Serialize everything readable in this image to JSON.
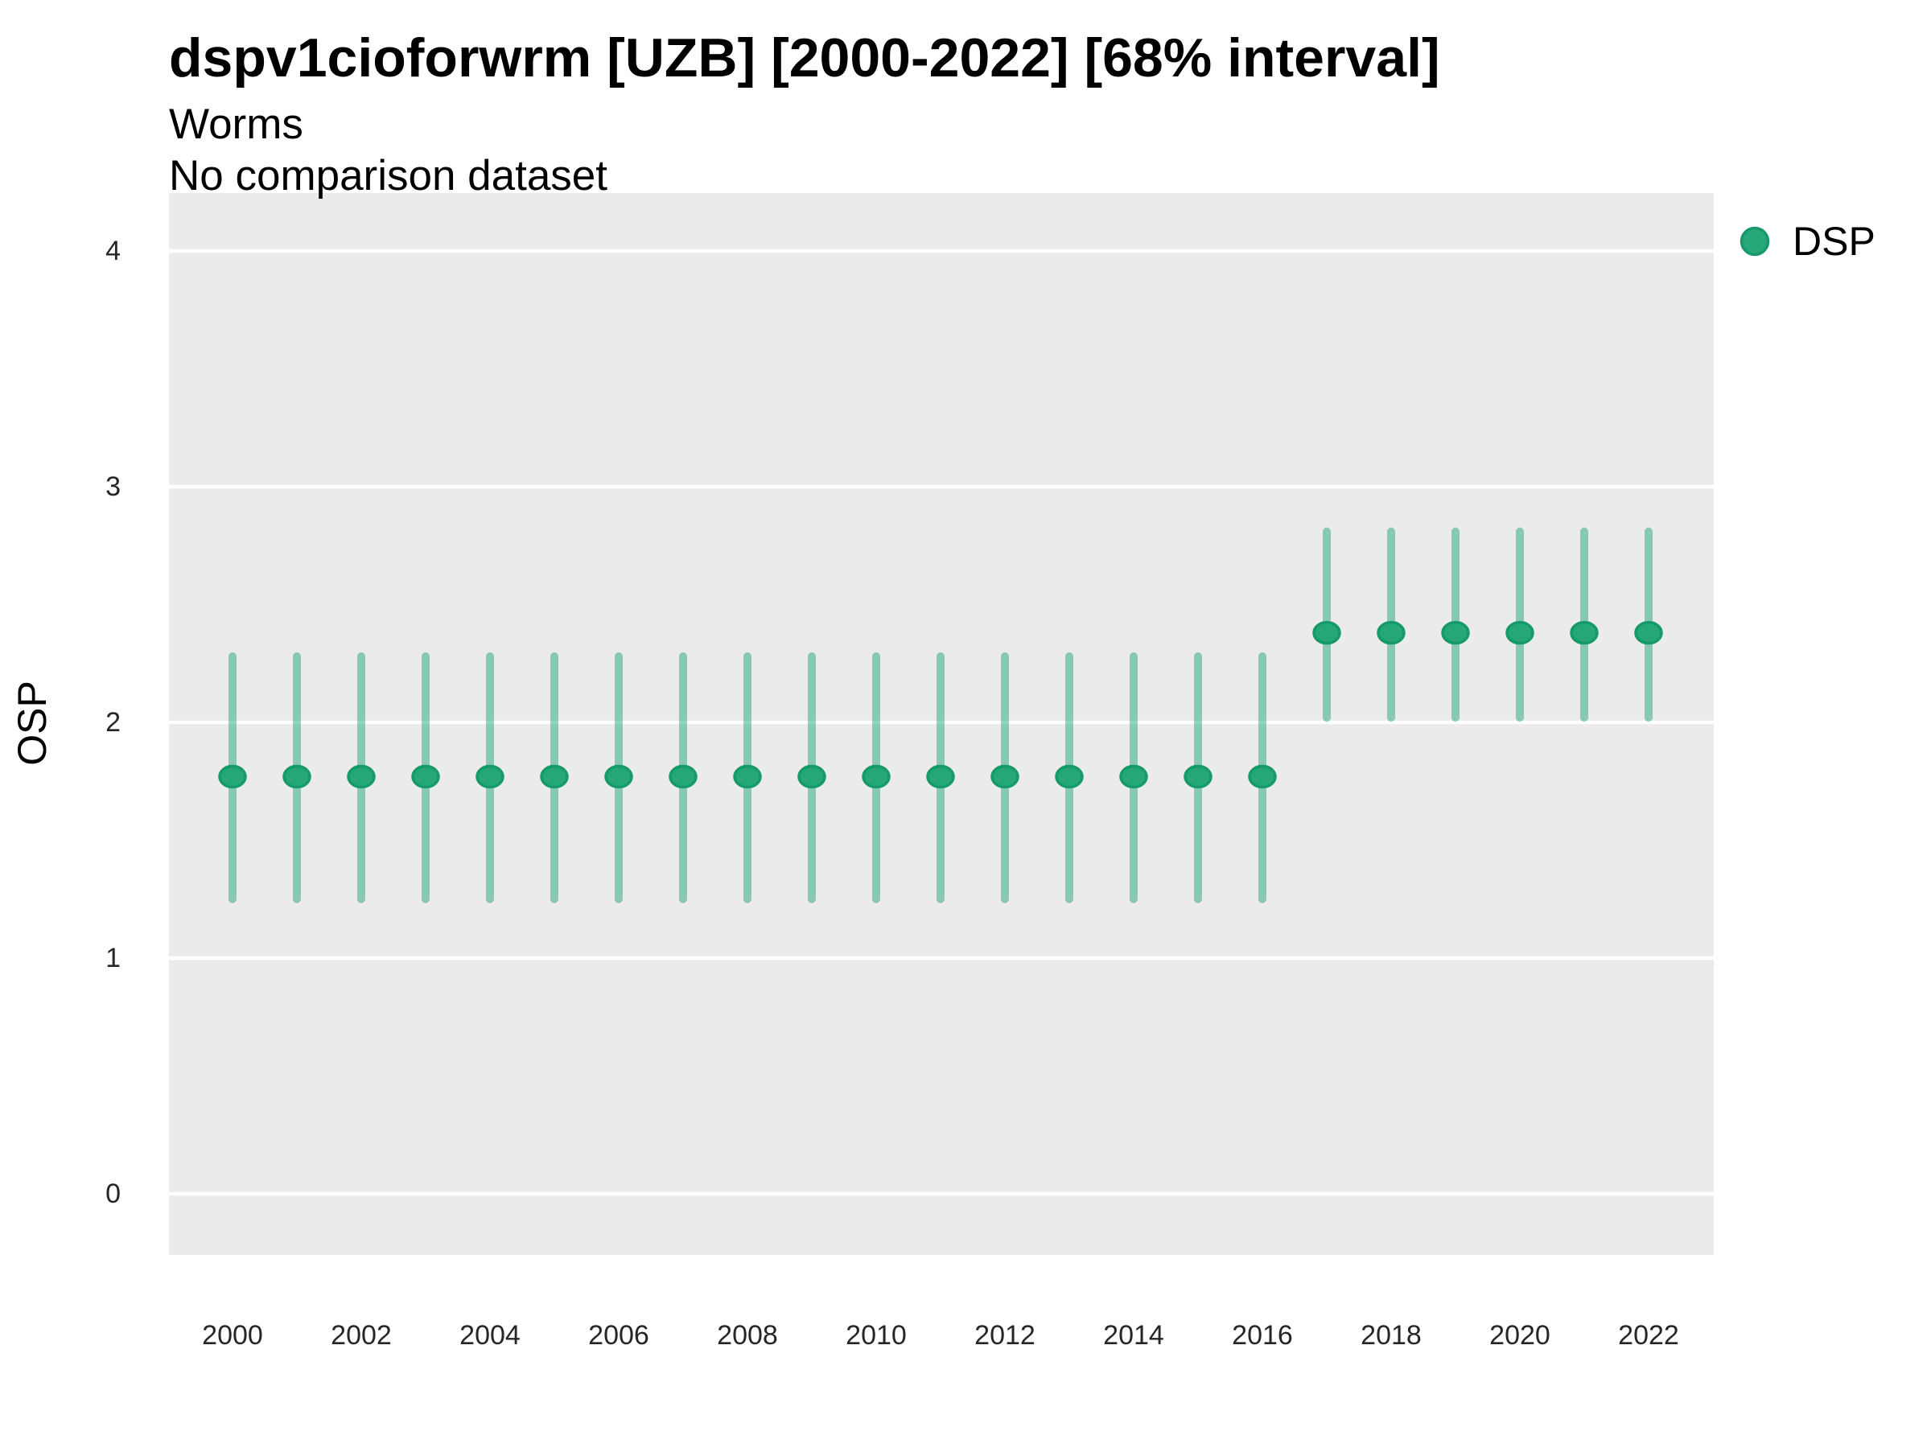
{
  "chart_data": {
    "type": "pointrange",
    "title": "dspv1cioforwrm [UZB] [2000-2022] [68% interval]",
    "subtitle": "Worms",
    "note": "No comparison dataset",
    "ylabel": "OSP",
    "xlabel": "",
    "interval_label": "68% interval",
    "ylim": [
      -0.26,
      4.25
    ],
    "yticks": [
      0,
      1,
      2,
      3,
      4
    ],
    "xticks": [
      2000,
      2002,
      2004,
      2006,
      2008,
      2010,
      2012,
      2014,
      2016,
      2018,
      2020,
      2022
    ],
    "grid": "major-horizontal-only",
    "legend": {
      "position": "right",
      "entries": [
        {
          "label": "DSP",
          "color": "#26a778"
        }
      ]
    },
    "series": [
      {
        "name": "DSP",
        "points": [
          {
            "year": 2000,
            "y": 1.77,
            "ymin": 1.25,
            "ymax": 2.28
          },
          {
            "year": 2001,
            "y": 1.77,
            "ymin": 1.25,
            "ymax": 2.28
          },
          {
            "year": 2002,
            "y": 1.77,
            "ymin": 1.25,
            "ymax": 2.28
          },
          {
            "year": 2003,
            "y": 1.77,
            "ymin": 1.25,
            "ymax": 2.28
          },
          {
            "year": 2004,
            "y": 1.77,
            "ymin": 1.25,
            "ymax": 2.28
          },
          {
            "year": 2005,
            "y": 1.77,
            "ymin": 1.25,
            "ymax": 2.28
          },
          {
            "year": 2006,
            "y": 1.77,
            "ymin": 1.25,
            "ymax": 2.28
          },
          {
            "year": 2007,
            "y": 1.77,
            "ymin": 1.25,
            "ymax": 2.28
          },
          {
            "year": 2008,
            "y": 1.77,
            "ymin": 1.25,
            "ymax": 2.28
          },
          {
            "year": 2009,
            "y": 1.77,
            "ymin": 1.25,
            "ymax": 2.28
          },
          {
            "year": 2010,
            "y": 1.77,
            "ymin": 1.25,
            "ymax": 2.28
          },
          {
            "year": 2011,
            "y": 1.77,
            "ymin": 1.25,
            "ymax": 2.28
          },
          {
            "year": 2012,
            "y": 1.77,
            "ymin": 1.25,
            "ymax": 2.28
          },
          {
            "year": 2013,
            "y": 1.77,
            "ymin": 1.25,
            "ymax": 2.28
          },
          {
            "year": 2014,
            "y": 1.77,
            "ymin": 1.25,
            "ymax": 2.28
          },
          {
            "year": 2015,
            "y": 1.77,
            "ymin": 1.25,
            "ymax": 2.28
          },
          {
            "year": 2016,
            "y": 1.77,
            "ymin": 1.25,
            "ymax": 2.28
          },
          {
            "year": 2017,
            "y": 2.38,
            "ymin": 2.02,
            "ymax": 2.81
          },
          {
            "year": 2018,
            "y": 2.38,
            "ymin": 2.02,
            "ymax": 2.81
          },
          {
            "year": 2019,
            "y": 2.38,
            "ymin": 2.02,
            "ymax": 2.81
          },
          {
            "year": 2020,
            "y": 2.38,
            "ymin": 2.02,
            "ymax": 2.81
          },
          {
            "year": 2021,
            "y": 2.38,
            "ymin": 2.02,
            "ymax": 2.81
          },
          {
            "year": 2022,
            "y": 2.38,
            "ymin": 2.02,
            "ymax": 2.81
          }
        ]
      }
    ]
  },
  "colors": {
    "point_fill": "#26a778",
    "point_stroke": "#179969",
    "error_bar": "rgba(39,167,121,0.5)",
    "panel_background": "#ebebeb",
    "gridline": "#ffffff",
    "tick_text": "#262626",
    "page_background": "#ffffff"
  }
}
